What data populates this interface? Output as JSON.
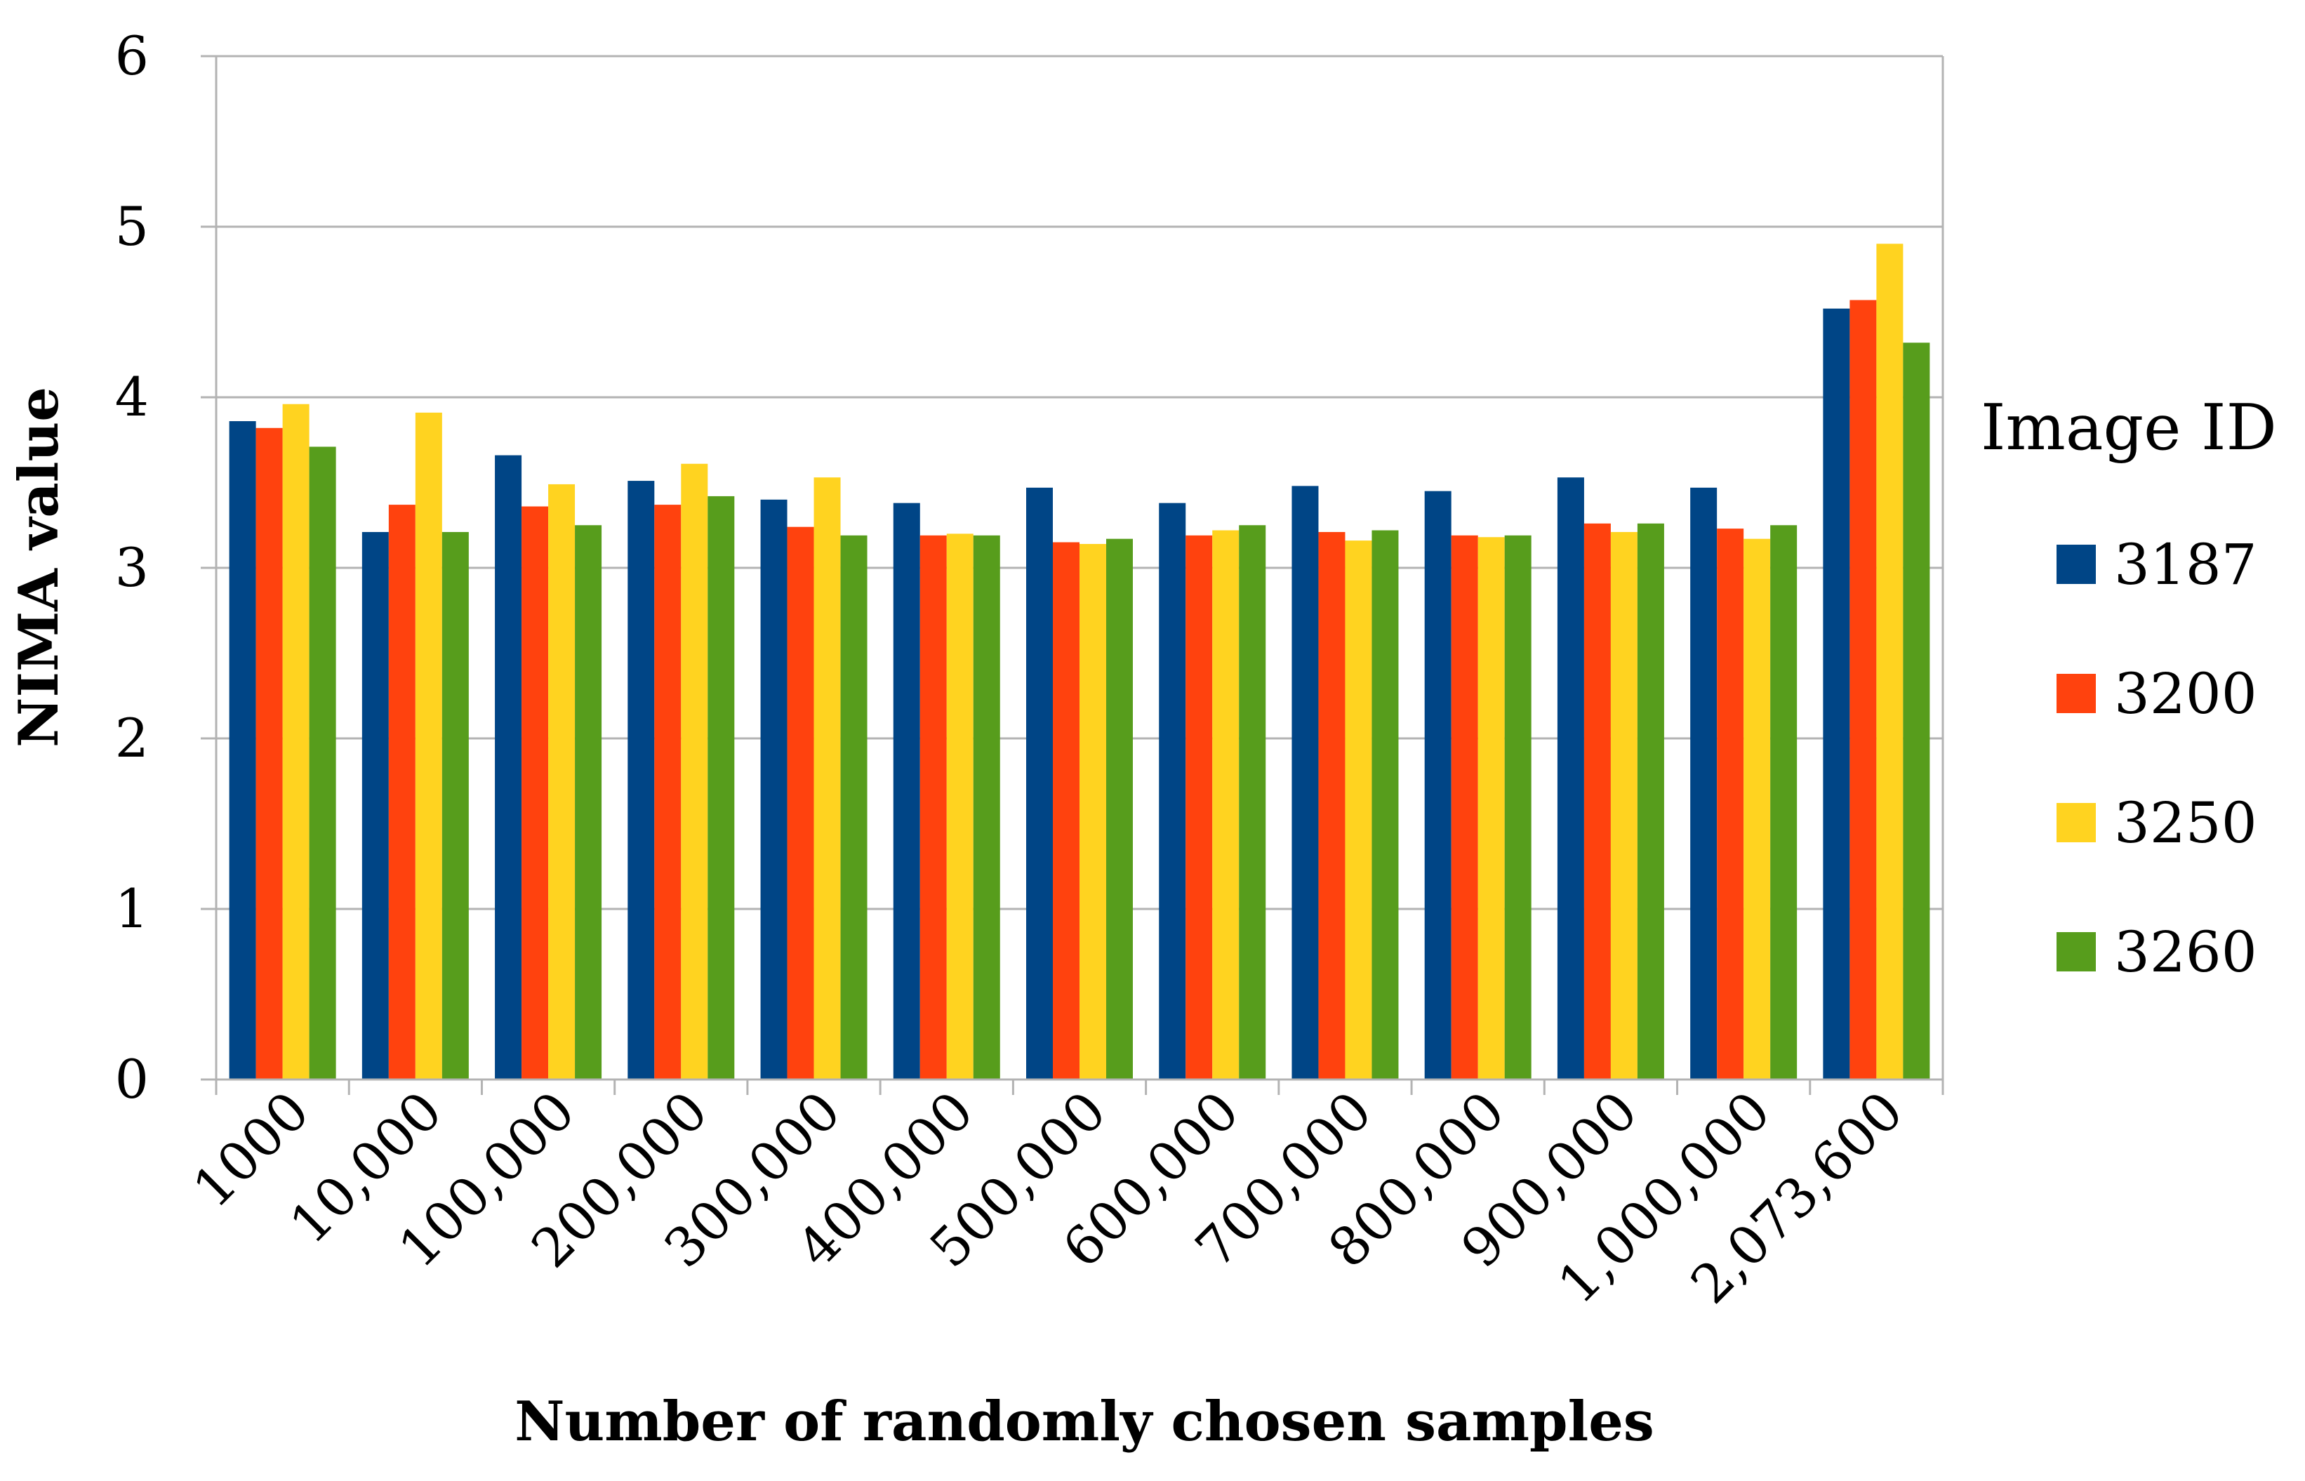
{
  "chart_data": {
    "type": "bar",
    "xlabel": "Number of randomly chosen samples",
    "ylabel": "NIMA value",
    "ylim": [
      0,
      6
    ],
    "yticks": [
      "0",
      "1",
      "2",
      "3",
      "4",
      "5",
      "6"
    ],
    "grid": true,
    "legend_title": "Image ID",
    "legend_position": "right",
    "categories": [
      "1000",
      "10,000",
      "100,000",
      "200,000",
      "300,000",
      "400,000",
      "500,000",
      "600,000",
      "700,000",
      "800,000",
      "900,000",
      "1,000,000",
      "2,073,600"
    ],
    "series": [
      {
        "name": "3187",
        "color": "#004586",
        "values": [
          3.86,
          3.21,
          3.66,
          3.51,
          3.4,
          3.38,
          3.47,
          3.38,
          3.48,
          3.45,
          3.53,
          3.47,
          4.52
        ]
      },
      {
        "name": "3200",
        "color": "#ff420e",
        "values": [
          3.82,
          3.37,
          3.36,
          3.37,
          3.24,
          3.19,
          3.15,
          3.19,
          3.21,
          3.19,
          3.26,
          3.23,
          4.57
        ]
      },
      {
        "name": "3250",
        "color": "#ffd320",
        "values": [
          3.96,
          3.91,
          3.49,
          3.61,
          3.53,
          3.2,
          3.14,
          3.22,
          3.16,
          3.18,
          3.21,
          3.17,
          4.9
        ]
      },
      {
        "name": "3260",
        "color": "#579d1c",
        "values": [
          3.71,
          3.21,
          3.25,
          3.42,
          3.19,
          3.19,
          3.17,
          3.25,
          3.22,
          3.19,
          3.26,
          3.25,
          4.32
        ]
      }
    ]
  }
}
